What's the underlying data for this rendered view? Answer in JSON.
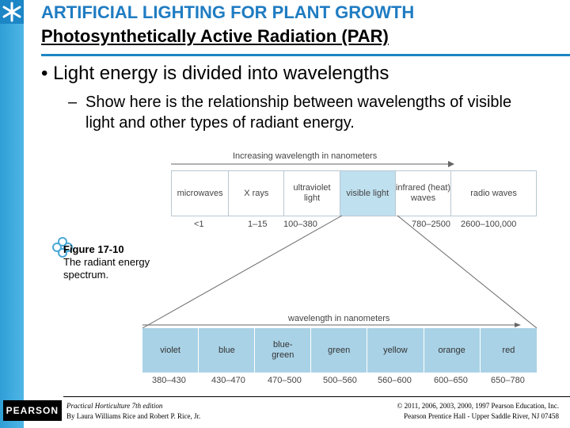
{
  "title": "ARTIFICIAL LIGHTING FOR PLANT GROWTH",
  "subtitle": "Photosynthetically Active Radiation (PAR)",
  "bullet": "Light energy is divided into wavelengths",
  "sub_bullet": "Show here is the relationship between wavelengths of visible light and other types of radiant energy.",
  "figure": {
    "top_label": "Increasing wavelength in nanometers",
    "bands": [
      "microwaves",
      "X rays",
      "ultraviolet light",
      "visible light",
      "infrared (heat) waves",
      "radio waves"
    ],
    "ranges": [
      "<1",
      "1–15",
      "100–380",
      "780–2500",
      "2600–100,000"
    ],
    "zoom_label": "wavelength in nanometers",
    "colors": [
      "violet",
      "blue",
      "blue-green",
      "green",
      "yellow",
      "orange",
      "red"
    ],
    "color_ranges": [
      "380–430",
      "430–470",
      "470–500",
      "500–560",
      "560–600",
      "600–650",
      "650–780"
    ],
    "caption_title": "Figure 17-10",
    "caption_text": "The radiant energy spectrum."
  },
  "footer": {
    "logo": "PEARSON",
    "book": "Practical Horticulture 7th edition",
    "authors": "By Laura Williams Rice and Robert P. Rice, Jr.",
    "copyright": "© 2011, 2006, 2003, 2000, 1997 Pearson Education, Inc.",
    "publisher": "Pearson Prentice Hall - Upper Saddle River, NJ 07458"
  },
  "accent_color": "#1f7cc2"
}
